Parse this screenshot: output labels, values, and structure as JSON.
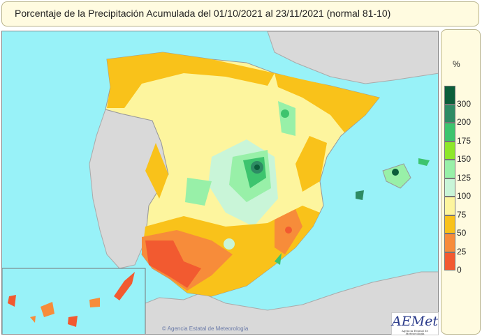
{
  "title": "Porcentaje de la Precipitación Acumulada del 01/10/2021 al 23/11/2021 (normal 81-10)",
  "legend": {
    "unit": "%",
    "bands": [
      {
        "label": "300",
        "color": "#0b5e3a"
      },
      {
        "label": "200",
        "color": "#2e8b64"
      },
      {
        "label": "175",
        "color": "#3dc46e"
      },
      {
        "label": "150",
        "color": "#8ee72a"
      },
      {
        "label": "125",
        "color": "#98f0a8"
      },
      {
        "label": "100",
        "color": "#c9f5d8"
      },
      {
        "label": "75",
        "color": "#fdf59e"
      },
      {
        "label": "50",
        "color": "#f9c21a"
      },
      {
        "label": "25",
        "color": "#f78c3a"
      },
      {
        "label": "0",
        "color": "#f25a30"
      }
    ]
  },
  "credit": "© Agencia Estatal de Meteorología",
  "logo": {
    "text": "AEMet",
    "subtext": "Agencia Estatal de Meteorología"
  },
  "colors": {
    "sea": "#98f2f8",
    "land_other": "#d9d9d9"
  }
}
